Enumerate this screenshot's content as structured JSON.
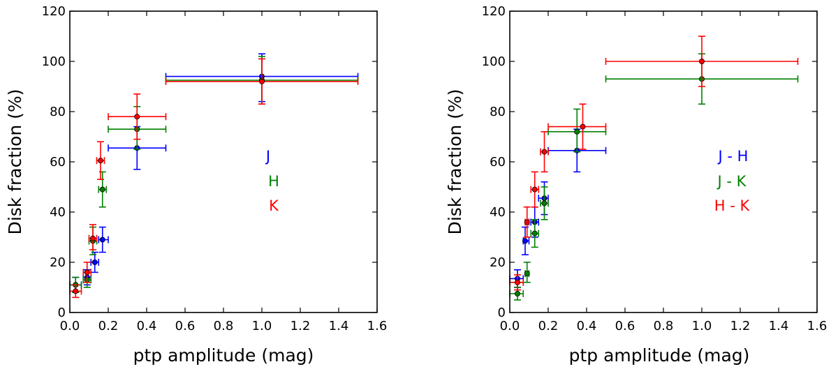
{
  "chart_data": [
    {
      "type": "scatter",
      "subtype": "errorbar",
      "title": "",
      "xlabel": "ptp amplitude (mag)",
      "ylabel": "Disk fraction (%)",
      "xlim": [
        0.0,
        1.6
      ],
      "ylim": [
        0,
        120
      ],
      "xticks": [
        "0.0",
        "0.2",
        "0.4",
        "0.6",
        "0.8",
        "1.0",
        "1.2",
        "1.4",
        "1.6"
      ],
      "yticks": [
        "0",
        "20",
        "40",
        "60",
        "80",
        "100",
        "120"
      ],
      "legend_position": "center-right",
      "series": [
        {
          "name": "J",
          "color": "#0000ff",
          "points": [
            {
              "x": 0.03,
              "y": 11,
              "xlo": 0.0,
              "xhi": 0.06,
              "ylo": 8,
              "yhi": 14
            },
            {
              "x": 0.09,
              "y": 14,
              "xlo": 0.07,
              "xhi": 0.11,
              "ylo": 11,
              "yhi": 17
            },
            {
              "x": 0.13,
              "y": 20,
              "xlo": 0.11,
              "xhi": 0.15,
              "ylo": 16,
              "yhi": 24
            },
            {
              "x": 0.17,
              "y": 29,
              "xlo": 0.15,
              "xhi": 0.2,
              "ylo": 24,
              "yhi": 34
            },
            {
              "x": 0.35,
              "y": 65.5,
              "xlo": 0.2,
              "xhi": 0.5,
              "ylo": 57,
              "yhi": 74
            },
            {
              "x": 1.0,
              "y": 94,
              "xlo": 0.5,
              "xhi": 1.5,
              "ylo": 84,
              "yhi": 103
            }
          ]
        },
        {
          "name": "H",
          "color": "#008000",
          "points": [
            {
              "x": 0.03,
              "y": 11,
              "xlo": 0.0,
              "xhi": 0.06,
              "ylo": 8,
              "yhi": 14
            },
            {
              "x": 0.09,
              "y": 13,
              "xlo": 0.07,
              "xhi": 0.11,
              "ylo": 10,
              "yhi": 16
            },
            {
              "x": 0.12,
              "y": 28.5,
              "xlo": 0.1,
              "xhi": 0.14,
              "ylo": 23,
              "yhi": 34
            },
            {
              "x": 0.17,
              "y": 49,
              "xlo": 0.15,
              "xhi": 0.19,
              "ylo": 42,
              "yhi": 56
            },
            {
              "x": 0.35,
              "y": 73,
              "xlo": 0.2,
              "xhi": 0.5,
              "ylo": 65,
              "yhi": 82
            },
            {
              "x": 1.0,
              "y": 92.5,
              "xlo": 0.5,
              "xhi": 1.5,
              "ylo": 83,
              "yhi": 102
            }
          ]
        },
        {
          "name": "K",
          "color": "#ff0000",
          "points": [
            {
              "x": 0.03,
              "y": 8.5,
              "xlo": 0.0,
              "xhi": 0.06,
              "ylo": 6,
              "yhi": 11
            },
            {
              "x": 0.09,
              "y": 16,
              "xlo": 0.07,
              "xhi": 0.11,
              "ylo": 12,
              "yhi": 20
            },
            {
              "x": 0.12,
              "y": 29.5,
              "xlo": 0.1,
              "xhi": 0.14,
              "ylo": 25,
              "yhi": 35
            },
            {
              "x": 0.16,
              "y": 60.5,
              "xlo": 0.14,
              "xhi": 0.18,
              "ylo": 53,
              "yhi": 68
            },
            {
              "x": 0.35,
              "y": 78,
              "xlo": 0.2,
              "xhi": 0.5,
              "ylo": 69,
              "yhi": 87
            },
            {
              "x": 1.0,
              "y": 92,
              "xlo": 0.5,
              "xhi": 1.5,
              "ylo": 83,
              "yhi": 101
            }
          ]
        }
      ]
    },
    {
      "type": "scatter",
      "subtype": "errorbar",
      "title": "",
      "xlabel": "ptp amplitude (mag)",
      "ylabel": "Disk fraction (%)",
      "xlim": [
        0.0,
        1.6
      ],
      "ylim": [
        0,
        120
      ],
      "xticks": [
        "0.0",
        "0.2",
        "0.4",
        "0.6",
        "0.8",
        "1.0",
        "1.2",
        "1.4",
        "1.6"
      ],
      "yticks": [
        "0",
        "20",
        "40",
        "60",
        "80",
        "100",
        "120"
      ],
      "legend_position": "center-right",
      "series": [
        {
          "name": "J - H",
          "color": "#0000ff",
          "points": [
            {
              "x": 0.04,
              "y": 13.5,
              "xlo": 0.0,
              "xhi": 0.07,
              "ylo": 10,
              "yhi": 17
            },
            {
              "x": 0.08,
              "y": 28.5,
              "xlo": 0.07,
              "xhi": 0.1,
              "ylo": 23,
              "yhi": 34
            },
            {
              "x": 0.13,
              "y": 36,
              "xlo": 0.11,
              "xhi": 0.15,
              "ylo": 30,
              "yhi": 42
            },
            {
              "x": 0.18,
              "y": 45.5,
              "xlo": 0.15,
              "xhi": 0.2,
              "ylo": 39,
              "yhi": 52
            },
            {
              "x": 0.35,
              "y": 64.5,
              "xlo": 0.2,
              "xhi": 0.5,
              "ylo": 56,
              "yhi": 73
            }
          ]
        },
        {
          "name": "J - K",
          "color": "#008000",
          "points": [
            {
              "x": 0.04,
              "y": 7.5,
              "xlo": 0.0,
              "xhi": 0.07,
              "ylo": 5,
              "yhi": 10
            },
            {
              "x": 0.09,
              "y": 15.5,
              "xlo": 0.08,
              "xhi": 0.1,
              "ylo": 12,
              "yhi": 20
            },
            {
              "x": 0.13,
              "y": 31.5,
              "xlo": 0.11,
              "xhi": 0.15,
              "ylo": 26,
              "yhi": 37
            },
            {
              "x": 0.18,
              "y": 43.5,
              "xlo": 0.16,
              "xhi": 0.2,
              "ylo": 37,
              "yhi": 50
            },
            {
              "x": 0.35,
              "y": 72,
              "xlo": 0.2,
              "xhi": 0.5,
              "ylo": 64,
              "yhi": 81
            },
            {
              "x": 1.0,
              "y": 93,
              "xlo": 0.5,
              "xhi": 1.5,
              "ylo": 83,
              "yhi": 103
            }
          ]
        },
        {
          "name": "H - K",
          "color": "#ff0000",
          "points": [
            {
              "x": 0.04,
              "y": 12,
              "xlo": 0.0,
              "xhi": 0.07,
              "ylo": 9,
              "yhi": 15
            },
            {
              "x": 0.09,
              "y": 36,
              "xlo": 0.08,
              "xhi": 0.1,
              "ylo": 30,
              "yhi": 42
            },
            {
              "x": 0.13,
              "y": 49,
              "xlo": 0.11,
              "xhi": 0.15,
              "ylo": 42,
              "yhi": 56
            },
            {
              "x": 0.18,
              "y": 64,
              "xlo": 0.16,
              "xhi": 0.2,
              "ylo": 56,
              "yhi": 72
            },
            {
              "x": 0.38,
              "y": 74,
              "xlo": 0.2,
              "xhi": 0.5,
              "ylo": 65,
              "yhi": 83
            },
            {
              "x": 1.0,
              "y": 100,
              "xlo": 0.5,
              "xhi": 1.5,
              "ylo": 90,
              "yhi": 110
            }
          ]
        }
      ]
    }
  ]
}
